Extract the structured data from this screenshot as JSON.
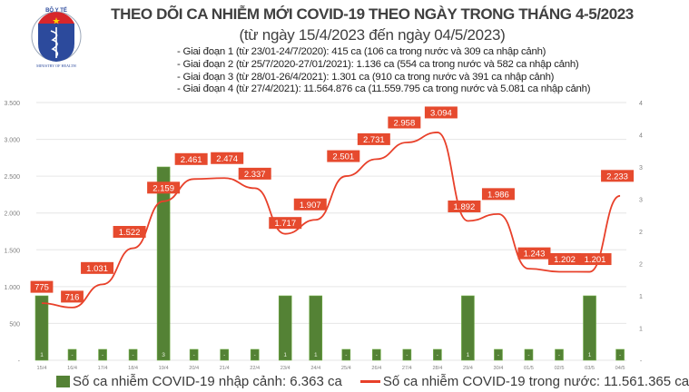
{
  "header": {
    "logo": {
      "top_text": "BỘ Y TẾ",
      "bottom_text": "MINISTRY OF HEALTH"
    },
    "title": "THEO DÕI CA NHIỄM MỚI COVID-19 THEO NGÀY TRONG THÁNG 4-5/2023",
    "subtitle": "(từ ngày 15/4/2023 đến ngày 04/5/2023)",
    "notes": [
      "- Giai đoạn 1 (từ 23/01-24/7/2020): 415 ca (106 ca trong nước và 309 ca nhập cảnh)",
      "- Giai đoạn 2 (từ 25/7/2020-27/01/2021): 1.136 ca (554 ca trong nước và 582 ca nhập cảnh)",
      "- Giai đoạn 3 (từ 28/01-26/4/2021): 1.301 ca (910 ca trong nước và 391 ca nhập cảnh)",
      "- Giai đoạn 4 (từ 27/4/2021): 11.564.876 ca (11.559.795 ca trong nước và 5.081 ca nhập cảnh)"
    ]
  },
  "legend": {
    "bar_label": "Số ca nhiễm COVID-19 nhập cảnh: 6.363 ca",
    "line_label": "Số ca nhiễm COVID-19 trong nước: 11.561.365 ca"
  },
  "colors": {
    "bar": "#548235",
    "line": "#e8402a",
    "label_bg": "#e64a2e",
    "grid": "#e6e6e6",
    "axis_text": "#7f7f7f"
  },
  "chart_data": {
    "type": "bar+line",
    "title": "THEO DÕI CA NHIỄM MỚI COVID-19 THEO NGÀY TRONG THÁNG 4-5/2023",
    "subtitle": "(từ ngày 15/4/2023 đến ngày 04/5/2023)",
    "categories": [
      "15/4",
      "16/4",
      "17/4",
      "18/4",
      "19/4",
      "20/4",
      "21/4",
      "22/4",
      "23/4",
      "24/4",
      "25/4",
      "26/4",
      "27/4",
      "28/4",
      "29/4",
      "30/4",
      "01/5",
      "02/5",
      "03/5",
      "04/5"
    ],
    "series": [
      {
        "name": "Số ca nhiễm COVID-19 nhập cảnh: 6.363 ca",
        "type": "bar",
        "axis": "right",
        "values": [
          1,
          0,
          0,
          0,
          3,
          0,
          0,
          0,
          1,
          1,
          0,
          0,
          0,
          0,
          1,
          0,
          0,
          0,
          1,
          0
        ],
        "data_labels": [
          "1",
          "-",
          "-",
          "-",
          "3",
          "-",
          "-",
          "-",
          "1",
          "1",
          "-",
          "-",
          "-",
          "-",
          "1",
          "-",
          "-",
          "-",
          "1",
          "-"
        ]
      },
      {
        "name": "Số ca nhiễm COVID-19 trong nước: 11.561.365 ca",
        "type": "line",
        "axis": "left",
        "values": [
          775,
          716,
          1031,
          1522,
          2159,
          2461,
          2474,
          2337,
          1717,
          1907,
          2501,
          2731,
          2958,
          3094,
          1892,
          1986,
          1243,
          1202,
          1201,
          2233
        ],
        "data_labels": [
          "775",
          "716",
          "1.031",
          "1.522",
          "2.159",
          "2.461",
          "2.474",
          "2.337",
          "1.717",
          "1.907",
          "2.501",
          "2.731",
          "2.958",
          "3.094",
          "1.892",
          "1.986",
          "1.243",
          "1.202",
          "1.201",
          "2.233"
        ]
      }
    ],
    "left_axis": {
      "ylim": [
        0,
        3500
      ],
      "ticks": [
        "-",
        "500",
        "1.000",
        "1.500",
        "2.000",
        "2.500",
        "3.000",
        "3.500"
      ]
    },
    "right_axis": {
      "ylim": [
        0,
        4
      ],
      "ticks": [
        "-",
        "1",
        "1",
        "2",
        "2",
        "3",
        "3",
        "4",
        "4"
      ]
    },
    "grid": true,
    "legend_position": "bottom"
  }
}
